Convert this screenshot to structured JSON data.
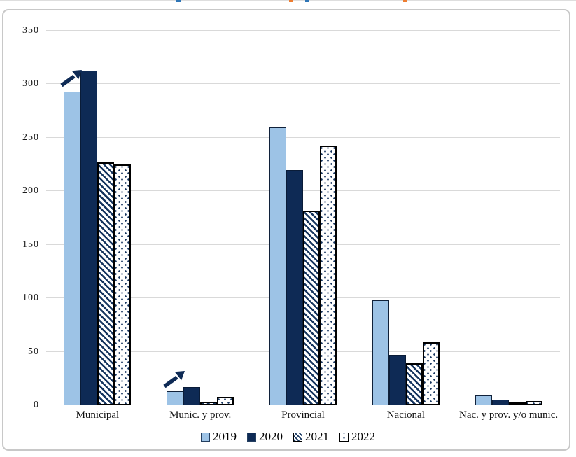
{
  "chart_data": {
    "type": "bar",
    "title": "",
    "categories": [
      "Municipal",
      "Munic. y prov.",
      "Provincial",
      "Nacional",
      "Nac. y prov. y/o munic."
    ],
    "series": [
      {
        "name": "2019",
        "pattern": "solid",
        "color": "#9dc3e6",
        "values": [
          293,
          13,
          260,
          98,
          9
        ]
      },
      {
        "name": "2020",
        "pattern": "solid2020",
        "color": "#0e2a55",
        "values": [
          313,
          17,
          220,
          47,
          5
        ]
      },
      {
        "name": "2021",
        "pattern": "hatch",
        "color": "#16355f",
        "values": [
          227,
          3,
          182,
          39,
          2
        ]
      },
      {
        "name": "2022",
        "pattern": "dots",
        "color": "#16355f",
        "values": [
          225,
          8,
          243,
          59,
          4
        ]
      }
    ],
    "ylim": [
      0,
      350
    ],
    "ytick_step": 50,
    "yticks": [
      "0",
      "50",
      "100",
      "150",
      "200",
      "250",
      "300",
      "350"
    ],
    "grid": true,
    "legend_position": "bottom",
    "legend_labels": [
      "2019",
      "2020",
      "2021",
      "2022"
    ],
    "annotations": [
      {
        "type": "increase-arrow-up-right",
        "category": "Municipal",
        "color": "#0e2a55",
        "y_value": 297
      },
      {
        "type": "increase-arrow-up-right",
        "category": "Munic. y prov.",
        "color": "#0e2a55",
        "y_value": 16
      }
    ]
  }
}
